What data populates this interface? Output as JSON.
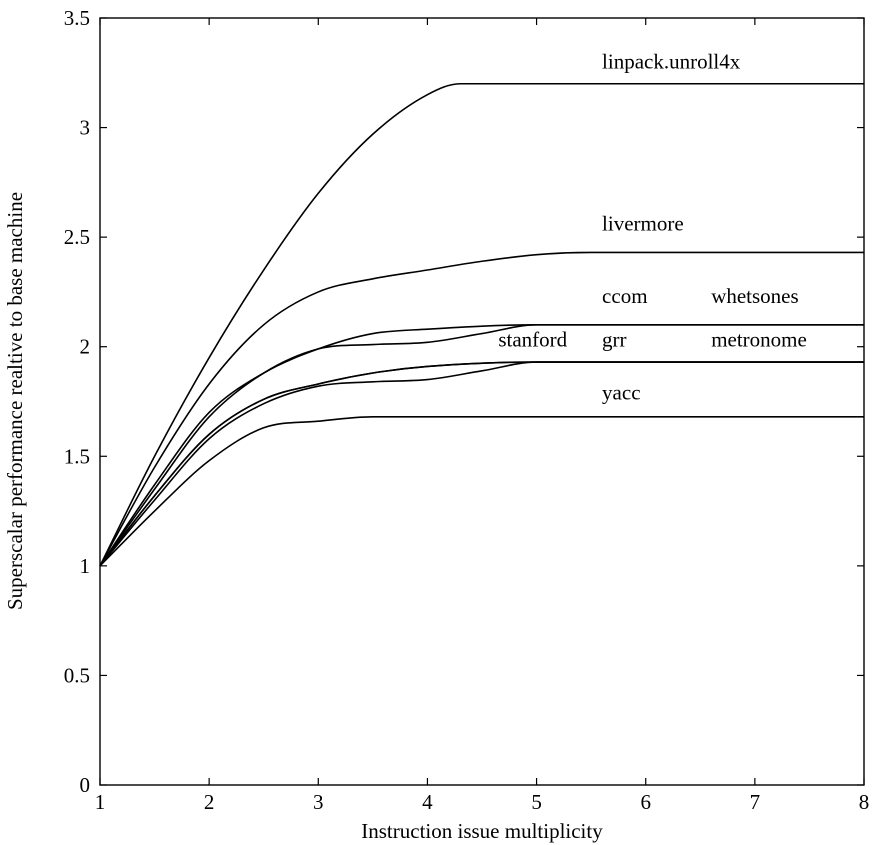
{
  "chart_data": {
    "type": "line",
    "xlabel": "Instruction issue multiplicity",
    "ylabel": "Superscalar performance realtive to base machine",
    "xlim": [
      1,
      8
    ],
    "ylim": [
      0,
      3.5
    ],
    "xticks": [
      "1",
      "2",
      "3",
      "4",
      "5",
      "6",
      "7",
      "8"
    ],
    "yticks": [
      "0",
      "0.5",
      "1",
      "1.5",
      "2",
      "2.5",
      "3",
      "3.5"
    ],
    "grid": false,
    "legend": "none",
    "labels": [
      {
        "text": "linpack.unroll4x",
        "x": 5.6,
        "y": 3.27
      },
      {
        "text": "livermore",
        "x": 5.6,
        "y": 2.53
      },
      {
        "text": "ccom",
        "x": 5.6,
        "y": 2.2
      },
      {
        "text": "whetsones",
        "x": 6.6,
        "y": 2.2
      },
      {
        "text": "stanford",
        "x": 4.65,
        "y": 2.0
      },
      {
        "text": "grr",
        "x": 5.6,
        "y": 2.0
      },
      {
        "text": "metronome",
        "x": 6.6,
        "y": 2.0
      },
      {
        "text": "yacc",
        "x": 5.6,
        "y": 1.76
      }
    ],
    "series": [
      {
        "name": "linpack.unroll4x",
        "x": [
          1,
          1.5,
          2,
          2.5,
          3,
          3.5,
          4,
          4.3,
          4.5,
          5,
          6,
          7,
          8
        ],
        "y": [
          1,
          1.5,
          1.95,
          2.35,
          2.7,
          2.97,
          3.15,
          3.2,
          3.2,
          3.2,
          3.2,
          3.2,
          3.2
        ]
      },
      {
        "name": "livermore",
        "x": [
          1,
          1.5,
          2,
          2.5,
          3,
          3.5,
          4,
          4.5,
          5,
          5.5,
          6,
          7,
          8
        ],
        "y": [
          1,
          1.45,
          1.83,
          2.1,
          2.25,
          2.31,
          2.35,
          2.39,
          2.42,
          2.43,
          2.43,
          2.43,
          2.43
        ]
      },
      {
        "name": "ccom",
        "x": [
          1,
          1.5,
          2,
          2.5,
          3,
          3.5,
          4,
          5,
          6,
          7,
          8
        ],
        "y": [
          1,
          1.37,
          1.7,
          1.88,
          1.99,
          2.06,
          2.08,
          2.1,
          2.1,
          2.1,
          2.1
        ]
      },
      {
        "name": "whetsones",
        "x": [
          1,
          1.5,
          2,
          2.5,
          3,
          3.5,
          4,
          4.5,
          5,
          6,
          7,
          8
        ],
        "y": [
          1,
          1.35,
          1.68,
          1.88,
          1.99,
          2.01,
          2.02,
          2.06,
          2.1,
          2.1,
          2.1,
          2.1
        ]
      },
      {
        "name": "grr",
        "x": [
          1,
          1.5,
          2,
          2.5,
          3,
          3.5,
          4,
          5,
          6,
          7,
          8
        ],
        "y": [
          1,
          1.32,
          1.6,
          1.76,
          1.83,
          1.88,
          1.91,
          1.93,
          1.93,
          1.93,
          1.93
        ]
      },
      {
        "name": "stanford",
        "x": [
          1,
          1.5,
          2,
          2.5,
          3,
          3.5,
          4,
          4.5,
          5,
          6,
          7,
          8
        ],
        "y": [
          1,
          1.3,
          1.58,
          1.74,
          1.82,
          1.84,
          1.85,
          1.89,
          1.93,
          1.93,
          1.93,
          1.93
        ]
      },
      {
        "name": "metronome",
        "x": [
          1,
          1.5,
          2,
          2.5,
          3,
          3.5,
          4,
          5,
          6,
          7,
          8
        ],
        "y": [
          1,
          1.32,
          1.6,
          1.76,
          1.83,
          1.88,
          1.91,
          1.93,
          1.93,
          1.93,
          1.93
        ]
      },
      {
        "name": "yacc",
        "x": [
          1,
          1.5,
          2,
          2.5,
          3,
          3.5,
          4,
          5,
          6,
          7,
          8
        ],
        "y": [
          1,
          1.25,
          1.48,
          1.63,
          1.66,
          1.68,
          1.68,
          1.68,
          1.68,
          1.68,
          1.68
        ]
      }
    ]
  }
}
